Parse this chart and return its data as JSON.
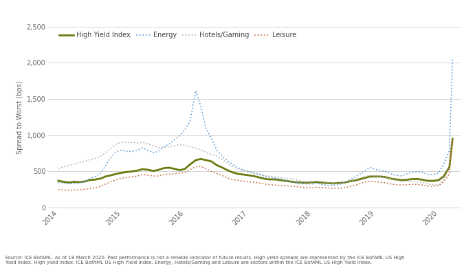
{
  "ylabel": "Spread to Worst (bps)",
  "ylim": [
    0,
    2500
  ],
  "yticks": [
    0,
    500,
    1000,
    1500,
    2000,
    2500
  ],
  "ytick_labels": [
    "0",
    "500",
    "1,000",
    "1,500",
    "2,000",
    "2,500"
  ],
  "xtick_labels": [
    "2014",
    "2015",
    "2016",
    "2017",
    "2018",
    "2019",
    "2020"
  ],
  "legend_labels": [
    "High Yield Index",
    "Energy",
    "Hotels/Gaming",
    "Leisure"
  ],
  "line_colors": [
    "#6b7a0f",
    "#5b9bd5",
    "#b0b0b0",
    "#c8663a"
  ],
  "background_color": "#ffffff",
  "grid_color": "#cccccc",
  "source_text": "Source: ICE BofAML. As of 18 March 2020. Past performance is not a reliable indicator of future results. High yield spreads are represented by the ICE BofAML US High\nYield Index. High yield index: ICE BofAML US High Yield Index. Energy, Hotels/Gaming and Leisure are sectors within the ICE BofAML US High Yield Index.",
  "high_yield_x": [
    2014.0,
    2014.08,
    2014.17,
    2014.25,
    2014.33,
    2014.42,
    2014.5,
    2014.58,
    2014.67,
    2014.75,
    2014.83,
    2014.92,
    2015.0,
    2015.08,
    2015.17,
    2015.25,
    2015.33,
    2015.42,
    2015.5,
    2015.58,
    2015.67,
    2015.75,
    2015.83,
    2015.92,
    2016.0,
    2016.08,
    2016.17,
    2016.25,
    2016.33,
    2016.42,
    2016.5,
    2016.58,
    2016.67,
    2016.75,
    2016.83,
    2016.92,
    2017.0,
    2017.08,
    2017.17,
    2017.25,
    2017.33,
    2017.42,
    2017.5,
    2017.58,
    2017.67,
    2017.75,
    2017.83,
    2017.92,
    2018.0,
    2018.08,
    2018.17,
    2018.25,
    2018.33,
    2018.42,
    2018.5,
    2018.58,
    2018.67,
    2018.75,
    2018.83,
    2018.92,
    2019.0,
    2019.08,
    2019.17,
    2019.25,
    2019.33,
    2019.42,
    2019.5,
    2019.58,
    2019.67,
    2019.75,
    2019.83,
    2019.92,
    2020.0,
    2020.08,
    2020.17,
    2020.22
  ],
  "high_yield_y": [
    370,
    355,
    345,
    355,
    350,
    360,
    380,
    385,
    400,
    430,
    445,
    465,
    480,
    490,
    500,
    510,
    530,
    520,
    505,
    520,
    545,
    550,
    535,
    515,
    535,
    595,
    655,
    670,
    655,
    635,
    585,
    555,
    515,
    485,
    465,
    455,
    445,
    435,
    415,
    398,
    388,
    388,
    378,
    368,
    358,
    348,
    343,
    343,
    348,
    352,
    342,
    338,
    332,
    338,
    342,
    358,
    372,
    388,
    408,
    428,
    428,
    428,
    418,
    398,
    388,
    378,
    383,
    393,
    393,
    383,
    368,
    368,
    378,
    428,
    555,
    945
  ],
  "energy_x": [
    2014.0,
    2014.08,
    2014.17,
    2014.25,
    2014.33,
    2014.42,
    2014.5,
    2014.58,
    2014.67,
    2014.75,
    2014.83,
    2014.92,
    2015.0,
    2015.08,
    2015.17,
    2015.25,
    2015.33,
    2015.42,
    2015.5,
    2015.58,
    2015.67,
    2015.75,
    2015.83,
    2015.92,
    2016.0,
    2016.08,
    2016.17,
    2016.25,
    2016.33,
    2016.42,
    2016.5,
    2016.58,
    2016.67,
    2016.75,
    2016.83,
    2016.92,
    2017.0,
    2017.08,
    2017.17,
    2017.25,
    2017.33,
    2017.42,
    2017.5,
    2017.58,
    2017.67,
    2017.75,
    2017.83,
    2017.92,
    2018.0,
    2018.08,
    2018.17,
    2018.25,
    2018.33,
    2018.42,
    2018.5,
    2018.58,
    2018.67,
    2018.75,
    2018.83,
    2018.92,
    2019.0,
    2019.08,
    2019.17,
    2019.25,
    2019.33,
    2019.42,
    2019.5,
    2019.58,
    2019.67,
    2019.75,
    2019.83,
    2019.92,
    2020.0,
    2020.08,
    2020.17,
    2020.22
  ],
  "energy_y": [
    345,
    338,
    328,
    332,
    338,
    358,
    398,
    428,
    475,
    585,
    695,
    775,
    795,
    775,
    775,
    795,
    825,
    785,
    755,
    775,
    845,
    875,
    935,
    995,
    1075,
    1195,
    1615,
    1395,
    1095,
    945,
    795,
    715,
    645,
    595,
    555,
    515,
    495,
    475,
    455,
    435,
    415,
    405,
    395,
    375,
    355,
    345,
    335,
    325,
    325,
    335,
    315,
    305,
    305,
    315,
    335,
    375,
    415,
    455,
    505,
    555,
    525,
    515,
    495,
    465,
    445,
    435,
    465,
    485,
    495,
    485,
    455,
    455,
    475,
    595,
    785,
    2050
  ],
  "hotels_x": [
    2014.0,
    2014.08,
    2014.17,
    2014.25,
    2014.33,
    2014.42,
    2014.5,
    2014.58,
    2014.67,
    2014.75,
    2014.83,
    2014.92,
    2015.0,
    2015.08,
    2015.17,
    2015.25,
    2015.33,
    2015.42,
    2015.5,
    2015.58,
    2015.67,
    2015.75,
    2015.83,
    2015.92,
    2016.0,
    2016.08,
    2016.17,
    2016.25,
    2016.33,
    2016.42,
    2016.5,
    2016.58,
    2016.67,
    2016.75,
    2016.83,
    2016.92,
    2017.0,
    2017.08,
    2017.17,
    2017.25,
    2017.33,
    2017.42,
    2017.5,
    2017.58,
    2017.67,
    2017.75,
    2017.83,
    2017.92,
    2018.0,
    2018.08,
    2018.17,
    2018.25,
    2018.33,
    2018.42,
    2018.5,
    2018.58,
    2018.67,
    2018.75,
    2018.83,
    2018.92,
    2019.0,
    2019.08,
    2019.17,
    2019.25,
    2019.33,
    2019.42,
    2019.5,
    2019.58,
    2019.67,
    2019.75,
    2019.83,
    2019.92,
    2020.0,
    2020.08,
    2020.17,
    2020.22
  ],
  "hotels_y": [
    540,
    560,
    580,
    600,
    620,
    640,
    660,
    680,
    710,
    760,
    820,
    880,
    900,
    900,
    900,
    890,
    900,
    880,
    850,
    830,
    830,
    840,
    850,
    870,
    860,
    840,
    820,
    800,
    760,
    730,
    710,
    670,
    610,
    565,
    535,
    515,
    495,
    483,
    463,
    443,
    433,
    423,
    413,
    403,
    393,
    383,
    363,
    353,
    353,
    363,
    353,
    343,
    333,
    333,
    343,
    363,
    383,
    403,
    423,
    443,
    433,
    423,
    413,
    393,
    373,
    363,
    363,
    363,
    353,
    343,
    323,
    313,
    313,
    383,
    545,
    975
  ],
  "leisure_x": [
    2014.0,
    2014.08,
    2014.17,
    2014.25,
    2014.33,
    2014.42,
    2014.5,
    2014.58,
    2014.67,
    2014.75,
    2014.83,
    2014.92,
    2015.0,
    2015.08,
    2015.17,
    2015.25,
    2015.33,
    2015.42,
    2015.5,
    2015.58,
    2015.67,
    2015.75,
    2015.83,
    2015.92,
    2016.0,
    2016.08,
    2016.17,
    2016.25,
    2016.33,
    2016.42,
    2016.5,
    2016.58,
    2016.67,
    2016.75,
    2016.83,
    2016.92,
    2017.0,
    2017.08,
    2017.17,
    2017.25,
    2017.33,
    2017.42,
    2017.5,
    2017.58,
    2017.67,
    2017.75,
    2017.83,
    2017.92,
    2018.0,
    2018.08,
    2018.17,
    2018.25,
    2018.33,
    2018.42,
    2018.5,
    2018.58,
    2018.67,
    2018.75,
    2018.83,
    2018.92,
    2019.0,
    2019.08,
    2019.17,
    2019.25,
    2019.33,
    2019.42,
    2019.5,
    2019.58,
    2019.67,
    2019.75,
    2019.83,
    2019.92,
    2020.0,
    2020.08,
    2020.17,
    2020.22
  ],
  "leisure_y": [
    248,
    242,
    238,
    242,
    242,
    252,
    262,
    272,
    292,
    325,
    355,
    385,
    405,
    415,
    425,
    435,
    455,
    445,
    435,
    435,
    455,
    460,
    465,
    475,
    485,
    525,
    565,
    565,
    535,
    495,
    470,
    445,
    405,
    385,
    375,
    365,
    355,
    350,
    340,
    325,
    315,
    310,
    305,
    300,
    295,
    290,
    280,
    275,
    270,
    280,
    275,
    270,
    265,
    265,
    270,
    285,
    305,
    325,
    350,
    365,
    355,
    350,
    340,
    325,
    315,
    310,
    315,
    320,
    320,
    310,
    295,
    295,
    300,
    355,
    465,
    955
  ]
}
